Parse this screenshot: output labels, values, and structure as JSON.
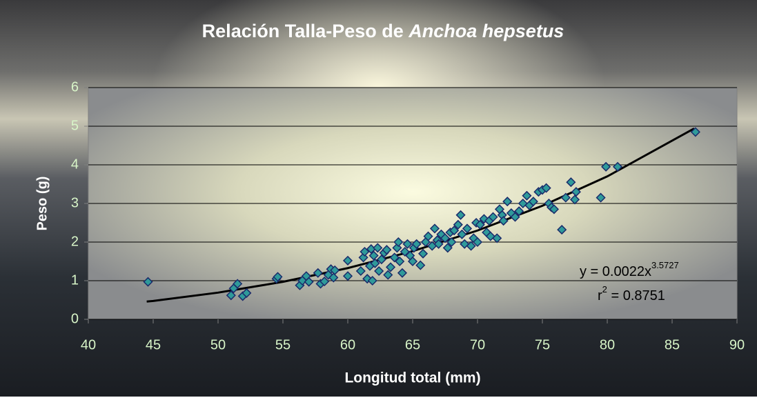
{
  "chart_data": {
    "type": "scatter",
    "title": [
      "Relación Talla-Peso de ",
      "Anchoa hepsetus"
    ],
    "x_label": "Longitud total (mm)",
    "y_label": "Peso (g)",
    "xlim": [
      40,
      90
    ],
    "xticks": [
      40,
      45,
      50,
      55,
      60,
      65,
      70,
      75,
      80,
      85,
      90
    ],
    "ylim": [
      0,
      6
    ],
    "yticks": [
      0,
      1,
      2,
      3,
      4,
      5,
      6
    ],
    "grid": true,
    "color": "#2f9a9a",
    "x": [
      44.6,
      51.0,
      51.2,
      51.5,
      51.9,
      52.2,
      54.5,
      54.6,
      56.3,
      56.5,
      56.8,
      57.0,
      57.7,
      57.9,
      58.2,
      58.5,
      58.7,
      58.9,
      59.0,
      60.0,
      60.0,
      61.0,
      61.2,
      61.3,
      61.5,
      61.7,
      61.8,
      61.9,
      62.0,
      62.1,
      62.3,
      62.4,
      62.6,
      62.8,
      63.0,
      63.1,
      63.3,
      63.6,
      63.8,
      63.9,
      64.0,
      64.2,
      64.4,
      64.6,
      64.8,
      65.0,
      65.1,
      65.3,
      65.6,
      65.8,
      66.0,
      66.2,
      66.5,
      66.7,
      66.9,
      67.0,
      67.2,
      67.5,
      67.7,
      67.9,
      68.0,
      68.2,
      68.5,
      68.7,
      68.8,
      69.0,
      69.2,
      69.5,
      69.7,
      69.9,
      70.0,
      70.2,
      70.5,
      70.7,
      70.9,
      71.0,
      71.2,
      71.5,
      71.7,
      71.9,
      72.0,
      72.3,
      72.6,
      72.9,
      73.2,
      73.5,
      73.8,
      74.0,
      74.3,
      74.7,
      75.0,
      75.3,
      75.5,
      75.7,
      75.9,
      76.5,
      76.8,
      77.2,
      77.5,
      77.6,
      79.5,
      79.9,
      80.8,
      86.8
    ],
    "values": [
      0.97,
      0.62,
      0.8,
      0.92,
      0.6,
      0.68,
      1.05,
      1.1,
      0.88,
      1.0,
      1.12,
      0.97,
      1.2,
      0.92,
      0.98,
      1.15,
      1.3,
      1.08,
      1.27,
      1.52,
      1.12,
      1.25,
      1.6,
      1.75,
      1.05,
      1.38,
      1.82,
      1.0,
      1.65,
      1.45,
      1.85,
      1.25,
      1.55,
      1.72,
      1.8,
      1.15,
      1.35,
      1.6,
      1.85,
      2.0,
      1.5,
      1.2,
      1.75,
      1.95,
      1.65,
      1.5,
      1.85,
      1.95,
      1.4,
      1.7,
      2.0,
      2.15,
      1.9,
      2.35,
      2.05,
      1.95,
      2.2,
      2.1,
      1.85,
      2.25,
      2.0,
      2.3,
      2.45,
      2.7,
      2.2,
      1.95,
      2.35,
      1.9,
      2.1,
      2.5,
      2.0,
      2.45,
      2.6,
      2.25,
      2.55,
      2.15,
      2.65,
      2.1,
      2.85,
      2.7,
      2.55,
      3.05,
      2.75,
      2.65,
      2.8,
      3.0,
      3.2,
      2.95,
      3.05,
      3.3,
      3.35,
      3.4,
      3.0,
      2.9,
      2.85,
      2.32,
      3.15,
      3.55,
      3.1,
      3.3,
      3.15,
      3.95,
      3.95,
      4.85
    ],
    "trendline": {
      "x": [
        44.5,
        45,
        50,
        55,
        60,
        65,
        70,
        75,
        80,
        86.7
      ],
      "values": [
        0.46,
        0.475,
        0.691,
        0.971,
        1.326,
        1.764,
        2.299,
        2.94,
        3.7,
        4.94
      ]
    },
    "equation": {
      "text": "y = 0.0022x",
      "exponent": "3.5727"
    },
    "r2": {
      "base": "r",
      "exponent": "2",
      "text": " = 0.8751"
    }
  }
}
